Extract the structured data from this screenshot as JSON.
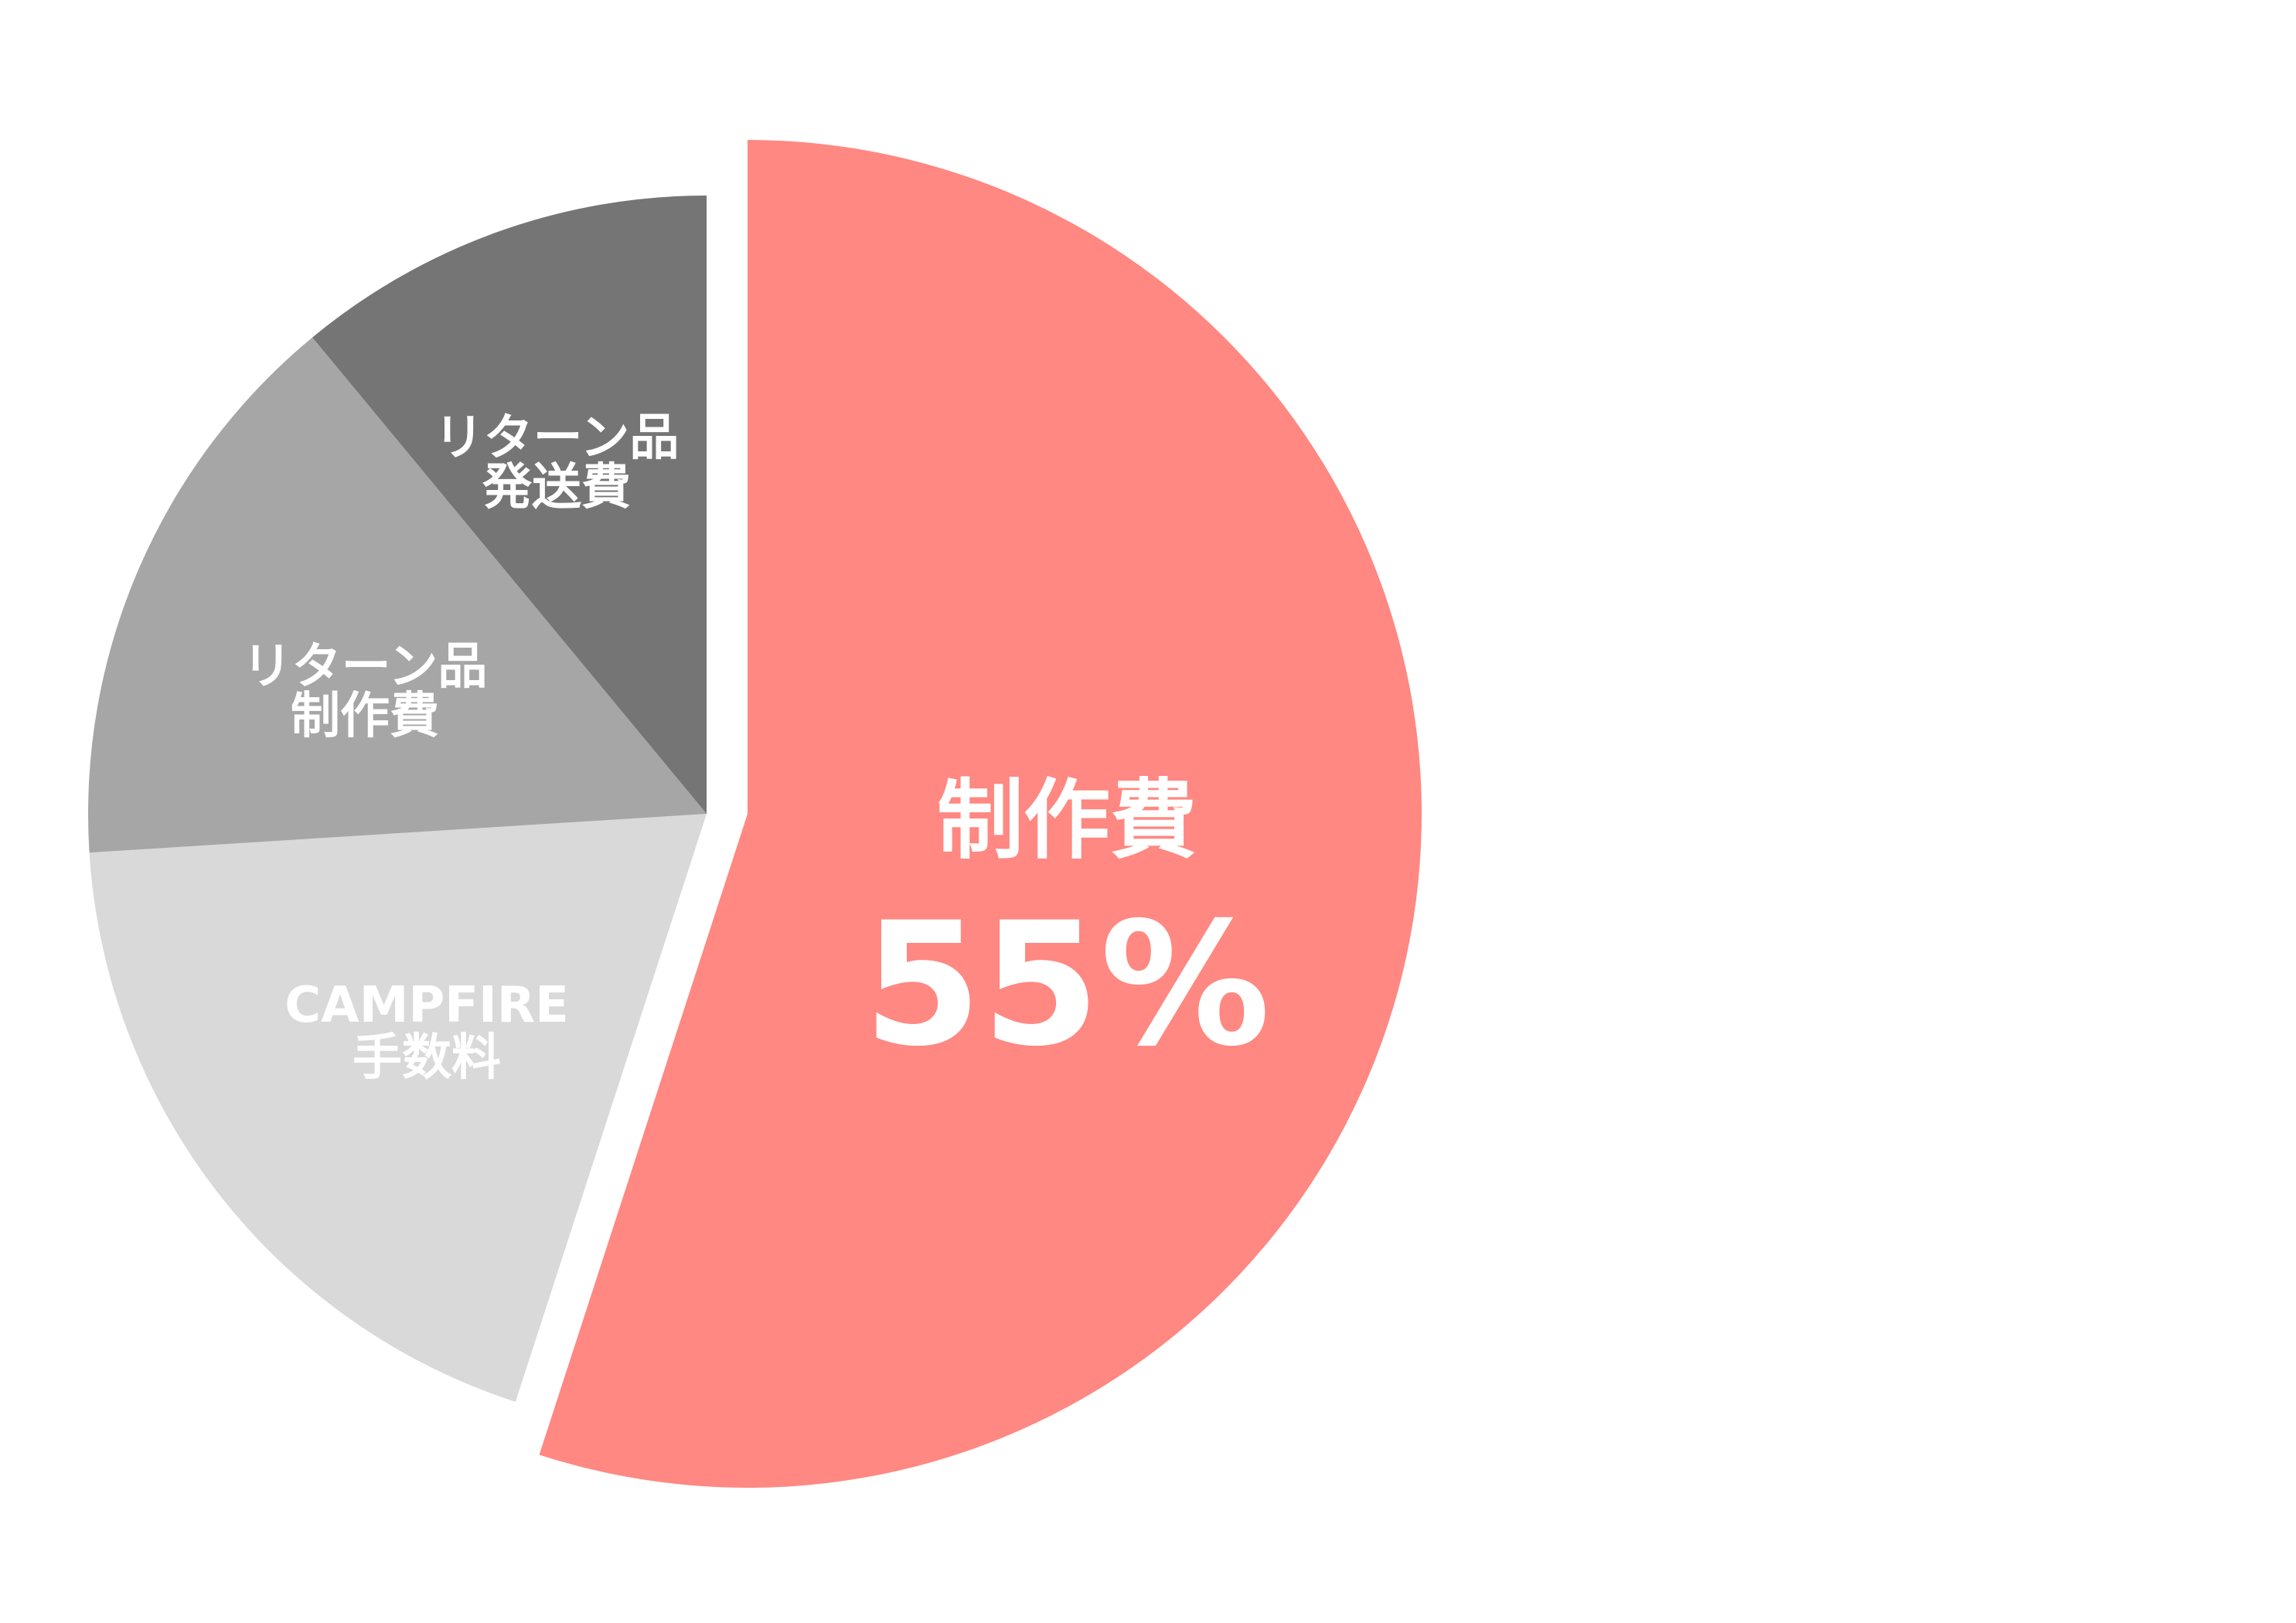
{
  "chart_data": {
    "type": "pie",
    "start": "top",
    "direction": "clockwise",
    "slices": [
      {
        "label_lines": [
          "制作費"
        ],
        "value": 55,
        "value_label": "55%",
        "color": "#FF8882",
        "exploded": true
      },
      {
        "label_lines": [
          "CAMPFIRE",
          "手数料"
        ],
        "value": 19,
        "color": "#D9D9D9"
      },
      {
        "label_lines": [
          "リターン品",
          "制作費"
        ],
        "value": 15,
        "color": "#A6A6A6"
      },
      {
        "label_lines": [
          "リターン品",
          "発送費"
        ],
        "value": 11,
        "color": "#757575"
      }
    ]
  }
}
